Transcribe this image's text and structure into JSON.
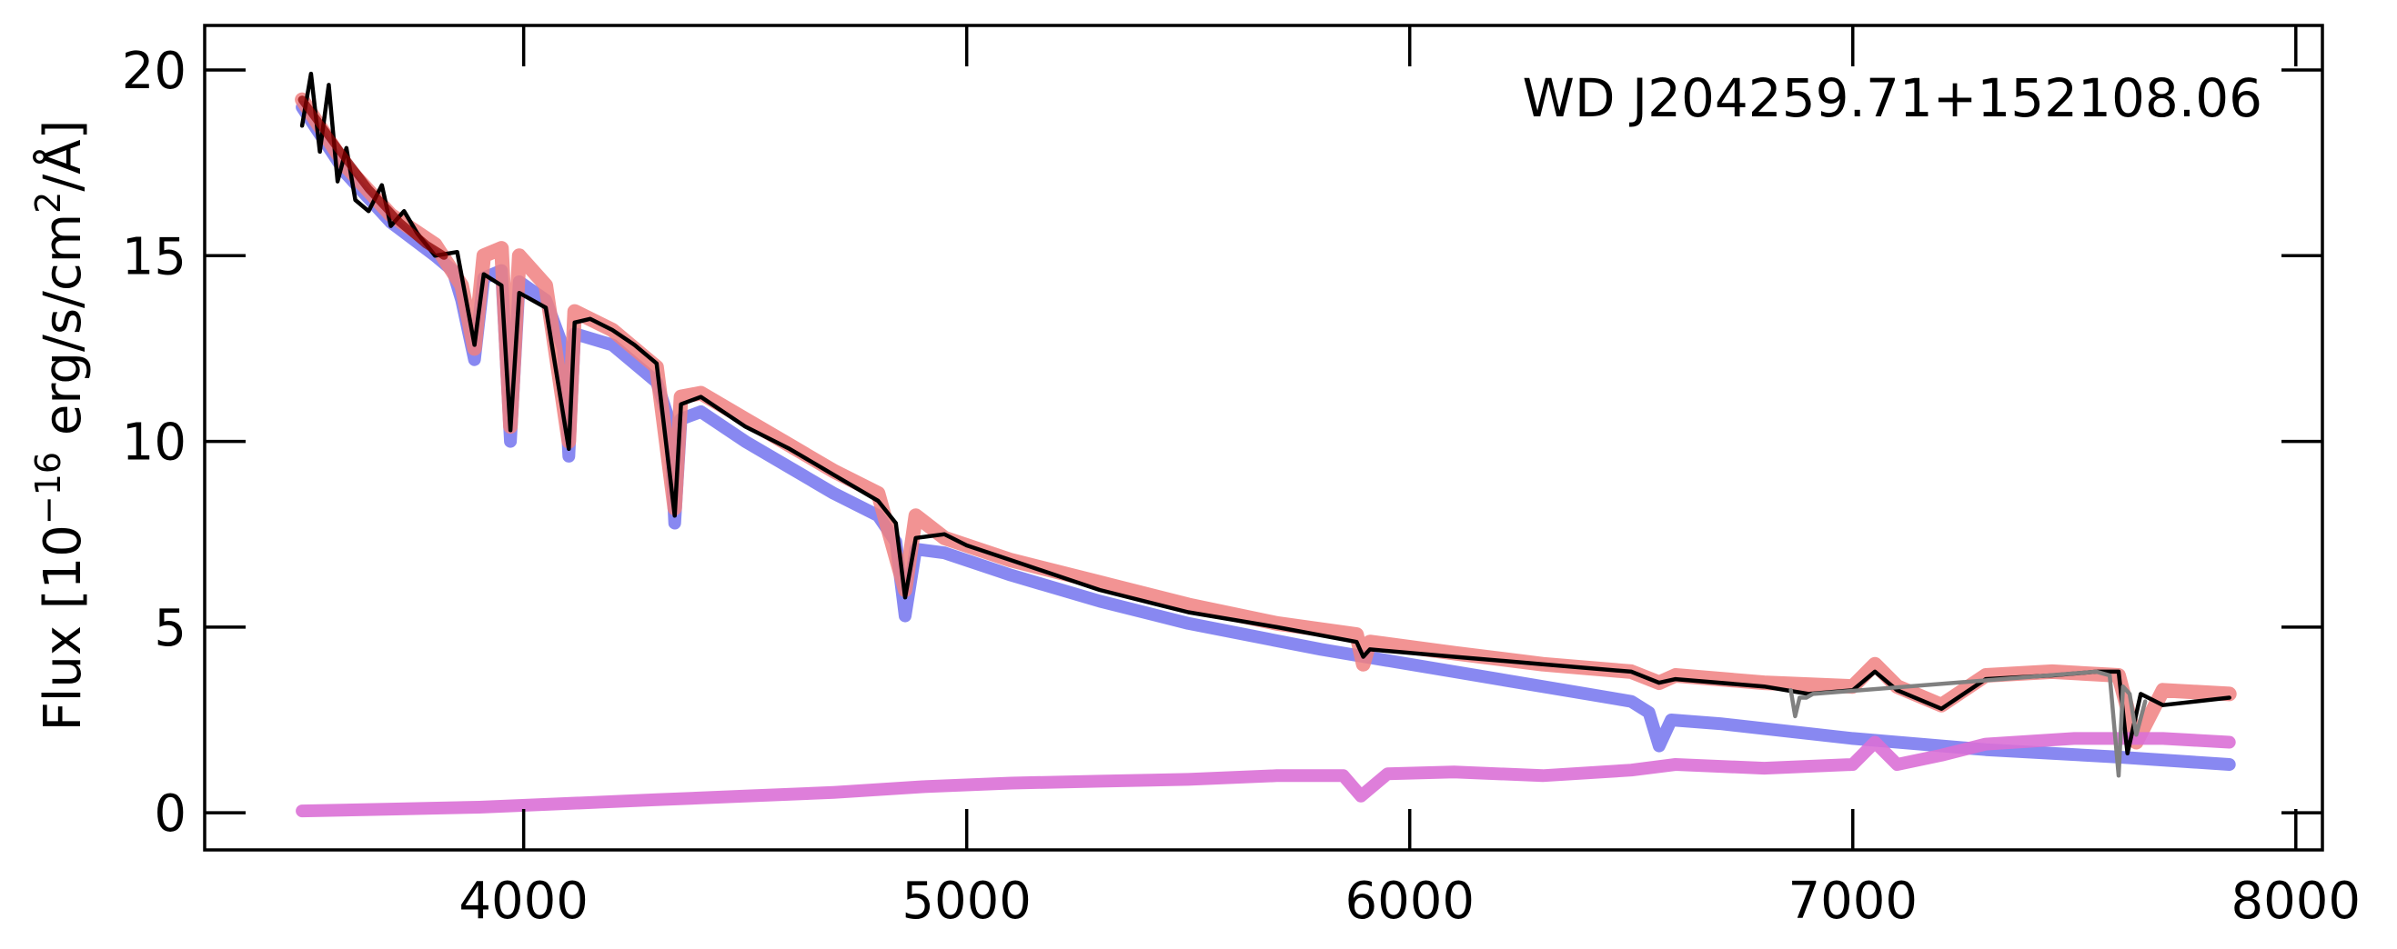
{
  "chart_data": {
    "type": "line",
    "annotation": "WD J204259.71+152108.06",
    "xlabel": "",
    "ylabel_prefix": "Flux [10",
    "ylabel_exp": "−16",
    "ylabel_mid": " erg/s/cm",
    "ylabel_exp2": "2",
    "ylabel_suffix": "/Å]",
    "xlim": [
      3280,
      8060
    ],
    "ylim": [
      -1,
      21.2
    ],
    "xticks": [
      4000,
      5000,
      6000,
      7000,
      8000
    ],
    "xtick_labels": [
      "4000",
      "5000",
      "6000",
      "7000",
      "8000"
    ],
    "yticks": [
      0,
      5,
      10,
      15,
      20
    ],
    "ytick_labels": [
      "0",
      "5",
      "10",
      "15",
      "20"
    ],
    "grid": false,
    "colors": {
      "observed": "#000000",
      "observed_telluric": "#808080",
      "combined_model": "#f08080",
      "white_dwarf_model": "#7b7bf0",
      "companion_model": "#da70d6",
      "fit_overlay": "#8b0000"
    },
    "series": [
      {
        "key": "white_dwarf_model",
        "x": [
          3500,
          3600,
          3700,
          3800,
          3840,
          3860,
          3889,
          3910,
          3950,
          3970,
          3990,
          4050,
          4090,
          4102,
          4115,
          4200,
          4300,
          4330,
          4341,
          4355,
          4400,
          4500,
          4600,
          4700,
          4800,
          4840,
          4861,
          4885,
          4950,
          5100,
          5300,
          5500,
          5800,
          6100,
          6400,
          6500,
          6540,
          6563,
          6590,
          6700,
          7000,
          7300,
          7600,
          7850
        ],
        "y": [
          19.0,
          17.2,
          15.9,
          15.0,
          14.6,
          13.8,
          12.2,
          14.4,
          14.6,
          10.0,
          14.3,
          13.8,
          12.5,
          9.6,
          12.9,
          12.6,
          11.6,
          10.5,
          7.8,
          10.6,
          10.8,
          10.0,
          9.3,
          8.6,
          8.0,
          7.3,
          5.3,
          7.1,
          7.0,
          6.4,
          5.7,
          5.1,
          4.4,
          3.8,
          3.2,
          3.0,
          2.7,
          1.8,
          2.5,
          2.4,
          2.0,
          1.7,
          1.5,
          1.3
        ]
      },
      {
        "key": "combined_model",
        "x": [
          3500,
          3600,
          3700,
          3800,
          3860,
          3889,
          3910,
          3950,
          3970,
          3990,
          4050,
          4102,
          4115,
          4200,
          4300,
          4341,
          4355,
          4400,
          4500,
          4600,
          4700,
          4800,
          4861,
          4885,
          4950,
          5100,
          5300,
          5500,
          5700,
          5880,
          5895,
          5910,
          6100,
          6300,
          6500,
          6563,
          6600,
          6800,
          7000,
          7050,
          7100,
          7200,
          7300,
          7450,
          7600,
          7640,
          7700,
          7850
        ],
        "y": [
          19.2,
          17.4,
          16.1,
          15.3,
          14.2,
          12.5,
          15.0,
          15.2,
          10.4,
          15.0,
          14.2,
          10.0,
          13.5,
          13.0,
          12.0,
          8.2,
          11.2,
          11.3,
          10.6,
          9.9,
          9.2,
          8.6,
          6.0,
          8.0,
          7.4,
          6.8,
          6.2,
          5.6,
          5.1,
          4.8,
          4.0,
          4.6,
          4.3,
          4.0,
          3.8,
          3.5,
          3.7,
          3.5,
          3.4,
          4.0,
          3.4,
          2.9,
          3.7,
          3.8,
          3.7,
          1.9,
          3.3,
          3.2
        ]
      },
      {
        "key": "companion_model",
        "x": [
          3500,
          3700,
          3900,
          4100,
          4300,
          4500,
          4700,
          4900,
          5100,
          5300,
          5500,
          5700,
          5850,
          5890,
          5950,
          6100,
          6300,
          6500,
          6600,
          6800,
          7000,
          7050,
          7100,
          7200,
          7300,
          7500,
          7700,
          7850
        ],
        "y": [
          0.05,
          0.1,
          0.15,
          0.25,
          0.35,
          0.45,
          0.55,
          0.7,
          0.8,
          0.85,
          0.9,
          1.0,
          1.0,
          0.45,
          1.05,
          1.1,
          1.0,
          1.15,
          1.3,
          1.2,
          1.3,
          1.9,
          1.3,
          1.55,
          1.85,
          2.0,
          2.0,
          1.9
        ]
      },
      {
        "key": "observed",
        "x": [
          3500,
          3520,
          3540,
          3560,
          3580,
          3600,
          3620,
          3650,
          3680,
          3700,
          3730,
          3760,
          3800,
          3850,
          3889,
          3910,
          3950,
          3970,
          3990,
          4050,
          4102,
          4115,
          4150,
          4200,
          4250,
          4300,
          4341,
          4355,
          4400,
          4500,
          4600,
          4700,
          4800,
          4840,
          4861,
          4885,
          4950,
          5000,
          5100,
          5300,
          5500,
          5700,
          5880,
          5895,
          5910,
          6100,
          6300,
          6500,
          6563,
          6600,
          6800,
          6900,
          7000,
          7050,
          7100,
          7200,
          7300,
          7450,
          7550,
          7600,
          7620,
          7650,
          7700,
          7850
        ],
        "y": [
          18.5,
          19.9,
          17.8,
          19.6,
          17.0,
          17.9,
          16.5,
          16.2,
          16.9,
          15.8,
          16.2,
          15.6,
          15.0,
          15.1,
          12.6,
          14.5,
          14.2,
          10.3,
          14.0,
          13.6,
          9.8,
          13.2,
          13.3,
          13.0,
          12.6,
          12.1,
          8.0,
          11.0,
          11.2,
          10.4,
          9.8,
          9.1,
          8.4,
          7.8,
          5.8,
          7.4,
          7.5,
          7.2,
          6.8,
          6.0,
          5.4,
          5.0,
          4.6,
          4.2,
          4.4,
          4.2,
          4.0,
          3.8,
          3.5,
          3.6,
          3.4,
          3.2,
          3.3,
          3.8,
          3.3,
          2.8,
          3.6,
          3.7,
          3.8,
          3.8,
          1.6,
          3.2,
          2.9,
          3.1
        ]
      },
      {
        "key": "observed_telluric",
        "x": [
          6860,
          6870,
          6880,
          6895,
          6910,
          7550,
          7580,
          7600,
          7610,
          7625,
          7640,
          7660
        ],
        "y": [
          3.3,
          2.6,
          3.1,
          3.1,
          3.2,
          3.8,
          3.7,
          1.0,
          3.4,
          3.2,
          2.1,
          3.0
        ]
      },
      {
        "key": "fit_overlay",
        "x": [
          3500,
          3580,
          3650,
          3720,
          3780,
          3820
        ],
        "y": [
          19.2,
          17.9,
          16.8,
          15.9,
          15.3,
          15.0
        ]
      }
    ]
  }
}
